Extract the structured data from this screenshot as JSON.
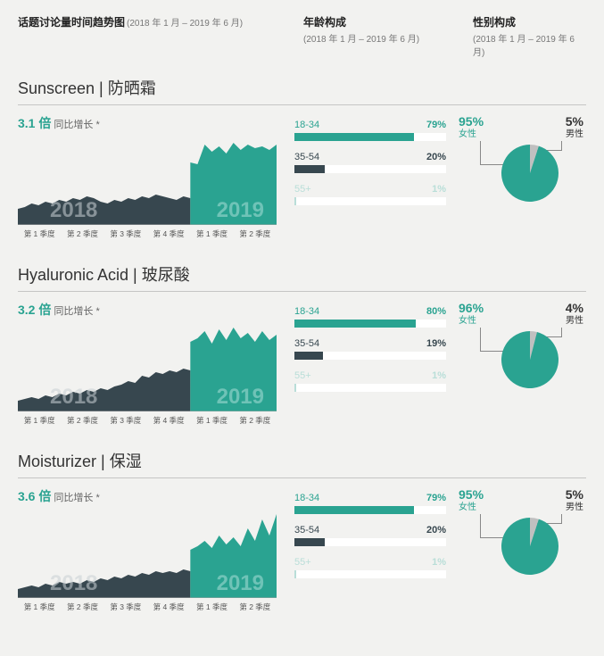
{
  "theme": {
    "background": "#f2f2f0",
    "text_color": "#333333",
    "axis_color": "#a0a0a0",
    "rule_color": "#c5c5c5",
    "color_2018": "#37474f",
    "color_2019": "#2aa391",
    "year_label_2018_color": "#c9d0d4",
    "year_label_2019_color": "#a8ded6",
    "age_bar_bg": "#ffffff",
    "age_colors": [
      "#2aa391",
      "#37474f",
      "#b9ded8"
    ],
    "pie_female_color": "#2aa391",
    "pie_male_color": "#c0c0c0",
    "section_title_fontsize": 18,
    "body_fontsize": 11
  },
  "headers": {
    "trend": {
      "title": "话题讨论量时间趋势图",
      "sub": "(2018 年 1 月 – 2019 年 6 月)"
    },
    "age": {
      "title": "年龄构成",
      "sub": "(2018 年 1 月 – 2019 年 6 月)"
    },
    "gender": {
      "title": "性别构成",
      "sub": "(2018 年 1 月 – 2019 年 6 月)"
    }
  },
  "x_axis_labels": [
    "第 1 季度",
    "第 2 季度",
    "第 3 季度",
    "第 4 季度",
    "第 1 季度",
    "第 2 季度"
  ],
  "year_labels": {
    "y2018": "2018",
    "y2019": "2019"
  },
  "sections": [
    {
      "title": "Sunscreen | 防晒霜",
      "growth_mult": "3.1 倍",
      "growth_label": "同比增长 *",
      "trend_2018": [
        18,
        20,
        24,
        22,
        26,
        24,
        28,
        26,
        30,
        28,
        32,
        30,
        26,
        24,
        28,
        26,
        30,
        28,
        32,
        30,
        34,
        32,
        30,
        28,
        32,
        30
      ],
      "trend_2019": [
        70,
        68,
        90,
        82,
        88,
        80,
        92,
        84,
        90,
        86,
        88,
        84,
        90
      ],
      "age": [
        {
          "label": "18-34",
          "pct": "79%",
          "value": 79,
          "color": "#2aa391"
        },
        {
          "label": "35-54",
          "pct": "20%",
          "value": 20,
          "color": "#37474f"
        },
        {
          "label": "55+",
          "pct": "1%",
          "value": 1,
          "color": "#b9ded8"
        }
      ],
      "gender": {
        "female_pct": "95%",
        "female_label": "女性",
        "female_value": 95,
        "male_pct": "5%",
        "male_label": "男性",
        "male_value": 5
      }
    },
    {
      "title": "Hyaluronic Acid | 玻尿酸",
      "growth_mult": "3.2 倍",
      "growth_label": "同比增长 *",
      "trend_2018": [
        12,
        14,
        16,
        14,
        18,
        16,
        20,
        18,
        22,
        20,
        24,
        22,
        26,
        24,
        28,
        30,
        34,
        32,
        40,
        38,
        44,
        42,
        46,
        44,
        48,
        46
      ],
      "trend_2019": [
        78,
        82,
        90,
        76,
        92,
        80,
        94,
        82,
        88,
        78,
        90,
        80,
        86
      ],
      "age": [
        {
          "label": "18-34",
          "pct": "80%",
          "value": 80,
          "color": "#2aa391"
        },
        {
          "label": "35-54",
          "pct": "19%",
          "value": 19,
          "color": "#37474f"
        },
        {
          "label": "55+",
          "pct": "1%",
          "value": 1,
          "color": "#b9ded8"
        }
      ],
      "gender": {
        "female_pct": "96%",
        "female_label": "女性",
        "female_value": 96,
        "male_pct": "4%",
        "male_label": "男性",
        "male_value": 4
      }
    },
    {
      "title": "Moisturizer | 保湿",
      "growth_mult": "3.6 倍",
      "growth_label": "同比增长 *",
      "trend_2018": [
        10,
        12,
        14,
        12,
        16,
        14,
        18,
        16,
        18,
        16,
        20,
        18,
        22,
        20,
        24,
        22,
        26,
        24,
        28,
        26,
        30,
        28,
        30,
        28,
        32,
        30
      ],
      "trend_2019": [
        54,
        58,
        64,
        56,
        70,
        60,
        68,
        58,
        78,
        64,
        88,
        70,
        94
      ],
      "age": [
        {
          "label": "18-34",
          "pct": "79%",
          "value": 79,
          "color": "#2aa391"
        },
        {
          "label": "35-54",
          "pct": "20%",
          "value": 20,
          "color": "#37474f"
        },
        {
          "label": "55+",
          "pct": "1%",
          "value": 1,
          "color": "#b9ded8"
        }
      ],
      "gender": {
        "female_pct": "95%",
        "female_label": "女性",
        "female_value": 95,
        "male_pct": "5%",
        "male_label": "男性",
        "male_value": 5
      }
    }
  ]
}
